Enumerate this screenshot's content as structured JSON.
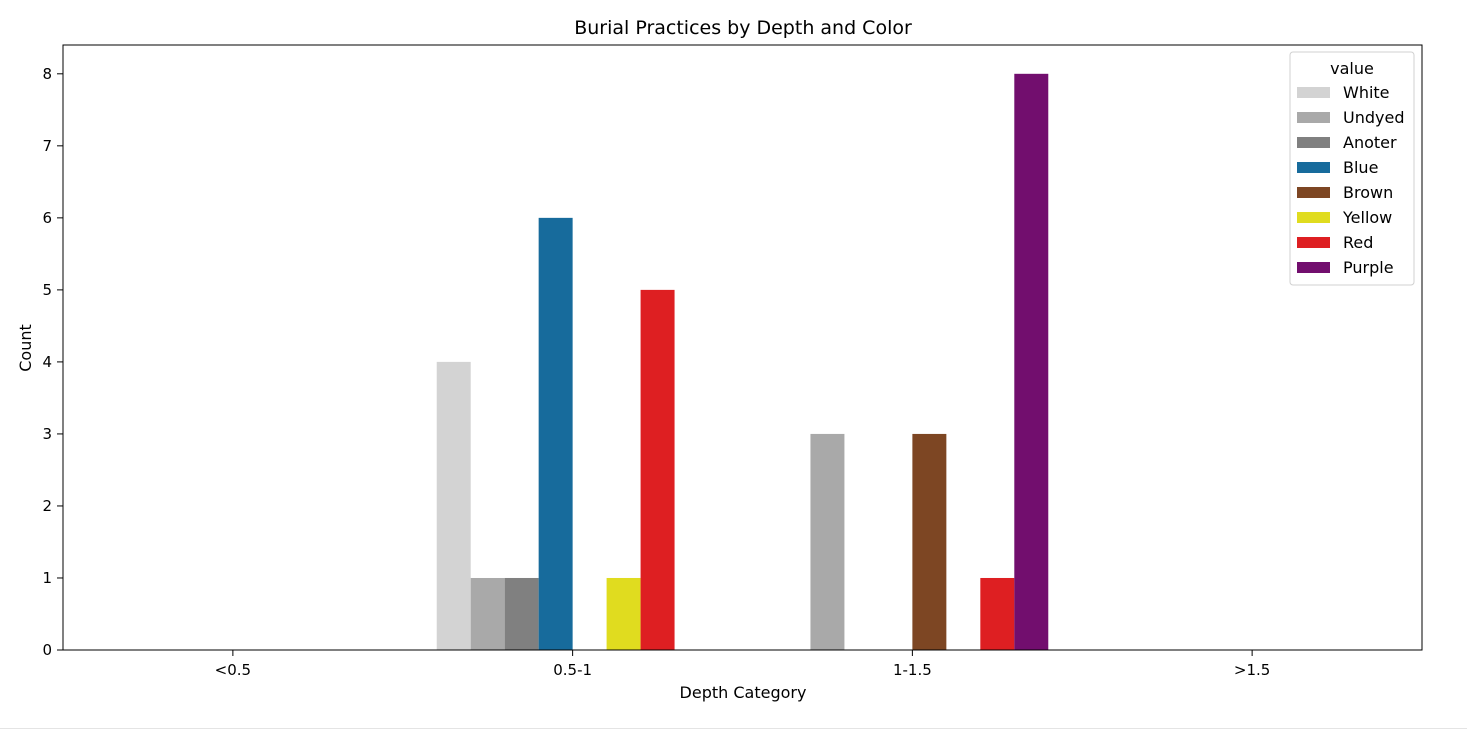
{
  "chart_data": {
    "type": "bar",
    "title": "Burial Practices by Depth and Color",
    "xlabel": "Depth Category",
    "ylabel": "Count",
    "categories": [
      "<0.5",
      "0.5-1",
      "1-1.5",
      ">1.5"
    ],
    "ylim": [
      0,
      8.4
    ],
    "yticks": [
      0,
      1,
      2,
      3,
      4,
      5,
      6,
      7,
      8
    ],
    "grid": false,
    "legend": {
      "title": "value",
      "position": "top-right"
    },
    "series": [
      {
        "name": "White",
        "color": "#d3d3d3",
        "values": [
          0,
          4,
          0,
          0
        ]
      },
      {
        "name": "Undyed",
        "color": "#a9a9a9",
        "values": [
          0,
          1,
          3,
          0
        ]
      },
      {
        "name": "Anoter",
        "color": "#808080",
        "values": [
          0,
          1,
          0,
          0
        ]
      },
      {
        "name": "Blue",
        "color": "#176b9c",
        "values": [
          0,
          6,
          0,
          0
        ]
      },
      {
        "name": "Brown",
        "color": "#7d4623",
        "values": [
          0,
          0,
          3,
          0
        ]
      },
      {
        "name": "Yellow",
        "color": "#e0dc1f",
        "values": [
          0,
          1,
          0,
          0
        ]
      },
      {
        "name": "Red",
        "color": "#de1f22",
        "values": [
          0,
          5,
          1,
          0
        ]
      },
      {
        "name": "Purple",
        "color": "#720e6e",
        "values": [
          0,
          0,
          8,
          0
        ]
      }
    ]
  }
}
